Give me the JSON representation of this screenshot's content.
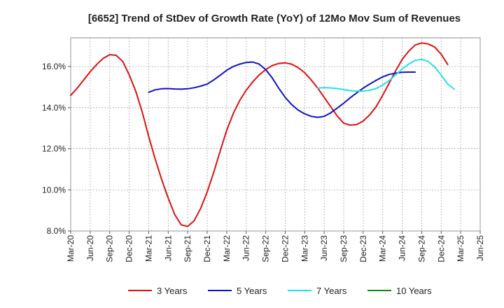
{
  "chart_data": {
    "type": "line",
    "title": "[6652]  Trend of StDev of Growth Rate (YoY) of 12Mo Mov Sum of Revenues",
    "xlabel": "",
    "ylabel": "",
    "x_ticks": [
      "Mar-20",
      "Jun-20",
      "Sep-20",
      "Dec-20",
      "Mar-21",
      "Jun-21",
      "Sep-21",
      "Dec-21",
      "Mar-22",
      "Jun-22",
      "Sep-22",
      "Dec-22",
      "Mar-23",
      "Jun-23",
      "Sep-23",
      "Dec-23",
      "Mar-24",
      "Jun-24",
      "Sep-24",
      "Dec-24",
      "Mar-25",
      "Jun-25"
    ],
    "y_ticks": [
      "8.0%",
      "10.0%",
      "12.0%",
      "14.0%",
      "16.0%"
    ],
    "y_tick_values": [
      8,
      10,
      12,
      14,
      16
    ],
    "ylim": [
      8,
      17.4
    ],
    "x_range": [
      0,
      63
    ],
    "grid": true,
    "legend_position": "bottom",
    "series": [
      {
        "name": "3 Years",
        "color": "#dd1111",
        "start_index": 0,
        "values": [
          14.6,
          14.95,
          15.35,
          15.75,
          16.1,
          16.4,
          16.58,
          16.55,
          16.25,
          15.6,
          14.8,
          13.8,
          12.6,
          11.5,
          10.5,
          9.6,
          8.8,
          8.3,
          8.22,
          8.5,
          9.1,
          9.9,
          10.85,
          11.9,
          12.9,
          13.7,
          14.35,
          14.85,
          15.25,
          15.6,
          15.85,
          16.05,
          16.15,
          16.18,
          16.12,
          15.95,
          15.7,
          15.35,
          14.95,
          14.5,
          14.05,
          13.6,
          13.25,
          13.15,
          13.18,
          13.35,
          13.65,
          14.05,
          14.6,
          15.2,
          15.8,
          16.35,
          16.75,
          17.05,
          17.15,
          17.1,
          16.95,
          16.6,
          16.1
        ]
      },
      {
        "name": "5 Years",
        "color": "#1111cc",
        "start_index": 12,
        "values": [
          14.75,
          14.87,
          14.92,
          14.93,
          14.91,
          14.9,
          14.92,
          14.97,
          15.05,
          15.15,
          15.35,
          15.58,
          15.82,
          16.0,
          16.12,
          16.2,
          16.22,
          16.12,
          15.85,
          15.45,
          14.95,
          14.5,
          14.15,
          13.88,
          13.7,
          13.58,
          13.53,
          13.58,
          13.75,
          13.98,
          14.22,
          14.48,
          14.72,
          14.95,
          15.15,
          15.33,
          15.5,
          15.62,
          15.68,
          15.72,
          15.73,
          15.73
        ]
      },
      {
        "name": "7 Years",
        "color": "#22e0ea",
        "start_index": 38,
        "values": [
          14.95,
          14.98,
          14.96,
          14.93,
          14.88,
          14.83,
          14.8,
          14.8,
          14.85,
          14.93,
          15.1,
          15.32,
          15.6,
          15.88,
          16.12,
          16.3,
          16.35,
          16.25,
          15.98,
          15.58,
          15.15,
          14.9
        ]
      },
      {
        "name": "10 Years",
        "color": "#118811",
        "start_index": 0,
        "values": []
      }
    ]
  }
}
